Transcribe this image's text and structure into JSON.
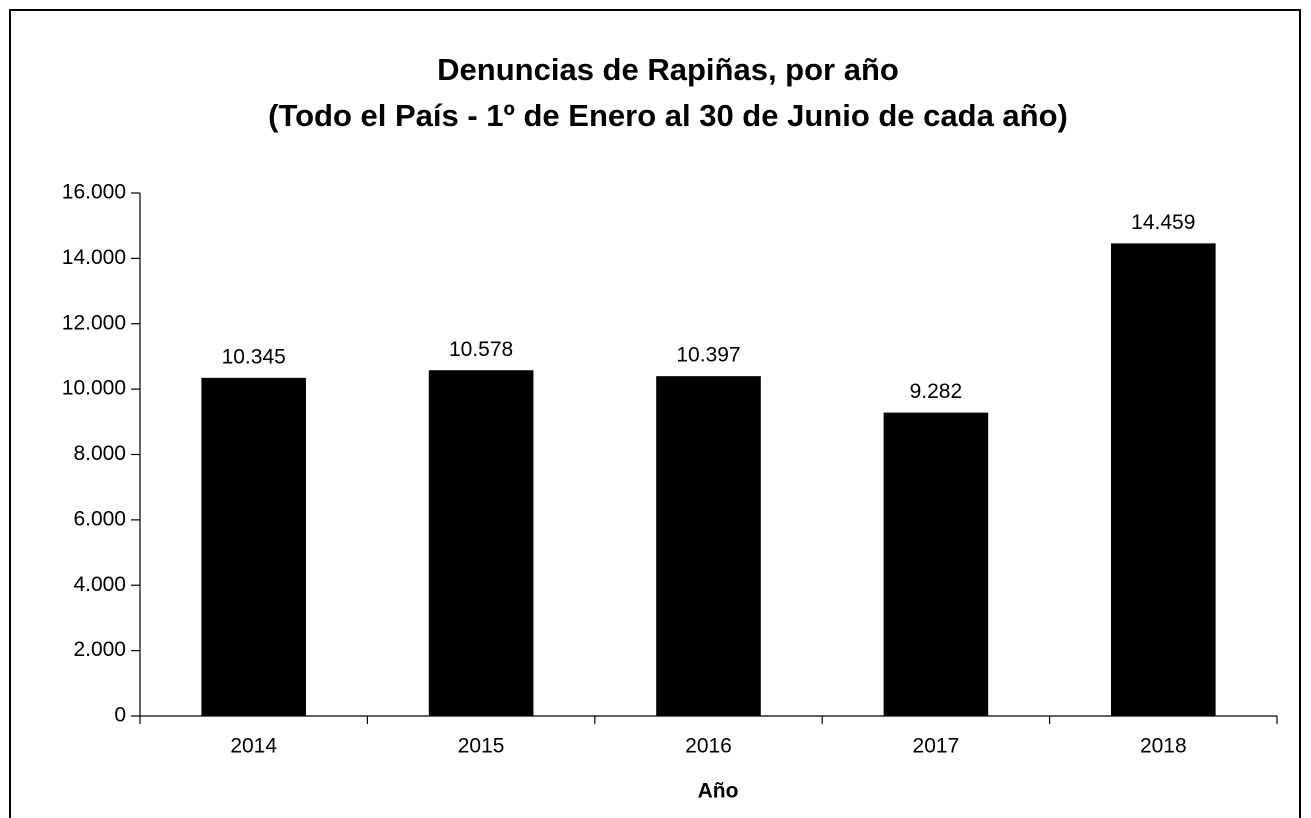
{
  "chart_data": {
    "type": "bar",
    "title": "Denuncias de Rapiñas, por año",
    "subtitle": "(Todo el País - 1º de Enero al 30 de Junio de cada año)",
    "x_label": "Año",
    "categories": [
      "2014",
      "2015",
      "2016",
      "2017",
      "2018"
    ],
    "values": [
      10345,
      10578,
      10397,
      9282,
      14459
    ],
    "value_labels": [
      "10.345",
      "10.578",
      "10.397",
      "9.282",
      "14.459"
    ],
    "color": "#000000",
    "ylim": [
      0,
      16000
    ],
    "yticks": [
      0,
      {
        "value": 2000,
        "label": "2.000"
      },
      {
        "value": 4000,
        "label": "4.000"
      },
      {
        "value": 6000,
        "label": "6.000"
      },
      {
        "value": 8000,
        "label": "8.000"
      },
      {
        "value": 10000,
        "label": "10.000"
      },
      {
        "value": 12000,
        "label": "12.000"
      },
      {
        "value": 14000,
        "label": "14.000"
      },
      {
        "value": 16000,
        "label": "16.000"
      }
    ],
    "grid": false
  }
}
